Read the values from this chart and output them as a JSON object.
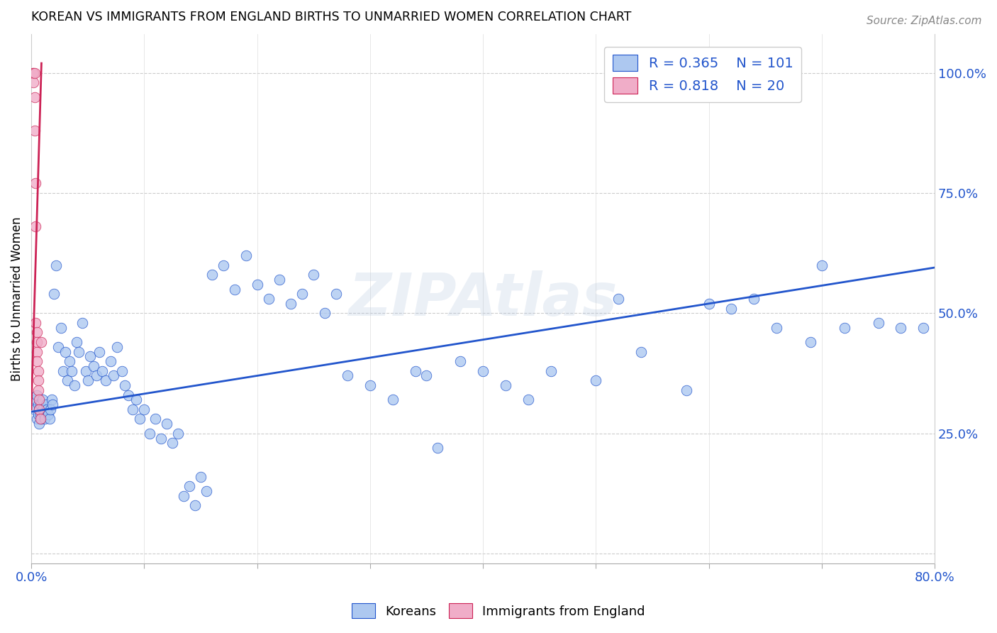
{
  "title": "KOREAN VS IMMIGRANTS FROM ENGLAND BIRTHS TO UNMARRIED WOMEN CORRELATION CHART",
  "source": "Source: ZipAtlas.com",
  "ylabel": "Births to Unmarried Women",
  "xlim": [
    0.0,
    0.8
  ],
  "ylim": [
    -0.02,
    1.08
  ],
  "ytick_values": [
    0.0,
    0.25,
    0.5,
    0.75,
    1.0
  ],
  "ytick_labels_right": [
    "",
    "25.0%",
    "50.0%",
    "75.0%",
    "100.0%"
  ],
  "xtick_values": [
    0.0,
    0.1,
    0.2,
    0.3,
    0.4,
    0.5,
    0.6,
    0.7,
    0.8
  ],
  "legend_R_blue": "0.365",
  "legend_N_blue": "101",
  "legend_R_pink": "0.818",
  "legend_N_pink": "20",
  "blue_color": "#adc8f0",
  "pink_color": "#f0adc8",
  "line_blue": "#2255cc",
  "line_pink": "#cc2255",
  "watermark": "ZIPAtlas",
  "blue_scatter_x": [
    0.003,
    0.004,
    0.005,
    0.005,
    0.006,
    0.006,
    0.007,
    0.007,
    0.008,
    0.008,
    0.009,
    0.01,
    0.01,
    0.011,
    0.012,
    0.013,
    0.014,
    0.015,
    0.016,
    0.017,
    0.018,
    0.019,
    0.02,
    0.022,
    0.024,
    0.026,
    0.028,
    0.03,
    0.032,
    0.034,
    0.036,
    0.038,
    0.04,
    0.042,
    0.045,
    0.048,
    0.05,
    0.052,
    0.055,
    0.058,
    0.06,
    0.063,
    0.066,
    0.07,
    0.073,
    0.076,
    0.08,
    0.083,
    0.086,
    0.09,
    0.093,
    0.096,
    0.1,
    0.105,
    0.11,
    0.115,
    0.12,
    0.125,
    0.13,
    0.135,
    0.14,
    0.145,
    0.15,
    0.155,
    0.16,
    0.17,
    0.18,
    0.19,
    0.2,
    0.21,
    0.22,
    0.23,
    0.24,
    0.25,
    0.26,
    0.27,
    0.28,
    0.3,
    0.32,
    0.34,
    0.35,
    0.36,
    0.38,
    0.4,
    0.42,
    0.44,
    0.46,
    0.5,
    0.52,
    0.54,
    0.58,
    0.6,
    0.62,
    0.64,
    0.66,
    0.69,
    0.7,
    0.72,
    0.75,
    0.77,
    0.79
  ],
  "blue_scatter_y": [
    0.3,
    0.32,
    0.28,
    0.33,
    0.29,
    0.31,
    0.3,
    0.27,
    0.29,
    0.31,
    0.28,
    0.3,
    0.32,
    0.29,
    0.28,
    0.31,
    0.3,
    0.29,
    0.28,
    0.3,
    0.32,
    0.31,
    0.54,
    0.6,
    0.43,
    0.47,
    0.38,
    0.42,
    0.36,
    0.4,
    0.38,
    0.35,
    0.44,
    0.42,
    0.48,
    0.38,
    0.36,
    0.41,
    0.39,
    0.37,
    0.42,
    0.38,
    0.36,
    0.4,
    0.37,
    0.43,
    0.38,
    0.35,
    0.33,
    0.3,
    0.32,
    0.28,
    0.3,
    0.25,
    0.28,
    0.24,
    0.27,
    0.23,
    0.25,
    0.12,
    0.14,
    0.1,
    0.16,
    0.13,
    0.58,
    0.6,
    0.55,
    0.62,
    0.56,
    0.53,
    0.57,
    0.52,
    0.54,
    0.58,
    0.5,
    0.54,
    0.37,
    0.35,
    0.32,
    0.38,
    0.37,
    0.22,
    0.4,
    0.38,
    0.35,
    0.32,
    0.38,
    0.36,
    0.53,
    0.42,
    0.34,
    0.52,
    0.51,
    0.53,
    0.47,
    0.44,
    0.6,
    0.47,
    0.48,
    0.47,
    0.47
  ],
  "pink_scatter_x": [
    0.001,
    0.002,
    0.002,
    0.003,
    0.003,
    0.003,
    0.004,
    0.004,
    0.004,
    0.005,
    0.005,
    0.005,
    0.005,
    0.006,
    0.006,
    0.006,
    0.007,
    0.007,
    0.008,
    0.009
  ],
  "pink_scatter_y": [
    1.0,
    1.0,
    0.98,
    1.0,
    0.95,
    0.88,
    0.77,
    0.68,
    0.48,
    0.46,
    0.44,
    0.42,
    0.4,
    0.38,
    0.36,
    0.34,
    0.32,
    0.3,
    0.28,
    0.44
  ],
  "blue_line_x": [
    0.0,
    0.8
  ],
  "blue_line_y": [
    0.295,
    0.595
  ],
  "pink_line_x": [
    0.0,
    0.009
  ],
  "pink_line_y": [
    0.3,
    1.02
  ]
}
